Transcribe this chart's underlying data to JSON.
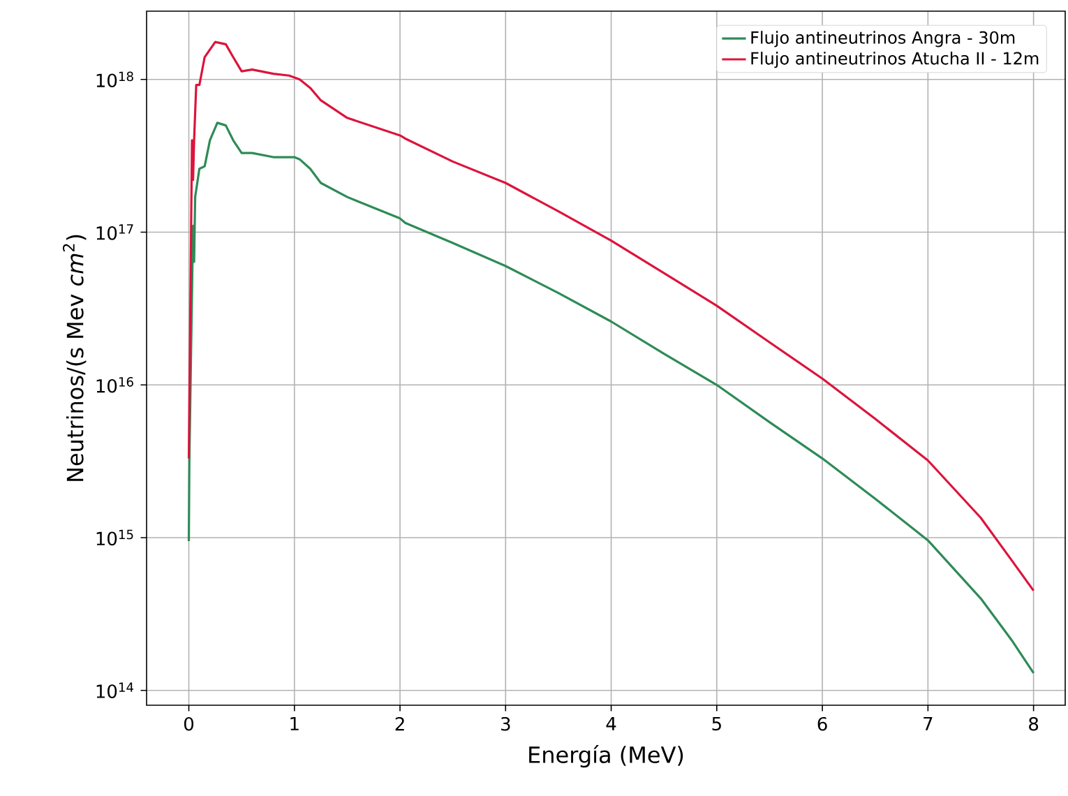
{
  "chart_data": {
    "type": "line",
    "xlabel": "Energía (MeV)",
    "ylabel": "Neutrinos/(s Mev *cm*$^{2}$)",
    "log": "y",
    "grid": true,
    "legend": "top right",
    "marker": "none",
    "line_style": "solid",
    "xlim": [
      -0.4,
      8.3
    ],
    "ylim": [
      80000000000000.0,
      2.8e+18
    ],
    "xticks": [
      0,
      1,
      2,
      3,
      4,
      5,
      6,
      7,
      8
    ],
    "yticks": [
      {
        "value": 100000000000000.0,
        "label": "10$^{14}$"
      },
      {
        "value": 1000000000000000.0,
        "label": "10$^{15}$"
      },
      {
        "value": 1e+16,
        "label": "10$^{16}$"
      },
      {
        "value": 1e+17,
        "label": "10$^{17}$"
      },
      {
        "value": 1e+18,
        "label": "10$^{18}$"
      }
    ],
    "series": [
      {
        "name": "Flujo antineutrinos Angra - 30m",
        "color": "#2e8b57",
        "x": [
          0,
          0.005,
          0.04,
          0.05,
          0.06,
          0.1,
          0.15,
          0.2,
          0.27,
          0.35,
          0.42,
          0.5,
          0.6,
          0.8,
          1.0,
          1.05,
          1.15,
          1.25,
          1.5,
          2.0,
          2.05,
          2.5,
          3,
          3.5,
          4,
          4.5,
          5,
          5.5,
          6,
          6.5,
          7,
          7.5,
          7.8,
          8
        ],
        "values": [
          950000000000000.0,
          3200000000000000.0,
          1.1e+17,
          6.4e+16,
          1.7e+17,
          2.6e+17,
          2.7e+17,
          4e+17,
          5.2e+17,
          5e+17,
          4e+17,
          3.3e+17,
          3.3e+17,
          3.1e+17,
          3.1e+17,
          3e+17,
          2.6e+17,
          2.1e+17,
          1.7e+17,
          1.23e+17,
          1.15e+17,
          8.5e+16,
          6e+16,
          4e+16,
          2.6e+16,
          1.6e+16,
          1e+16,
          5700000000000000.0,
          3300000000000000.0,
          1800000000000000.0,
          960000000000000.0,
          400000000000000.0,
          210000000000000.0,
          130000000000000.0
        ]
      },
      {
        "name": "Flujo antineutrinos Atucha II - 12m",
        "color": "#dc143c",
        "x": [
          0,
          0.03,
          0.04,
          0.05,
          0.07,
          0.1,
          0.15,
          0.25,
          0.35,
          0.42,
          0.5,
          0.6,
          0.8,
          0.95,
          1.05,
          1.15,
          1.25,
          1.5,
          2.0,
          2.05,
          2.5,
          3,
          3.5,
          4,
          4.5,
          5,
          5.5,
          6,
          6.5,
          7,
          7.5,
          7.8,
          8
        ],
        "values": [
          3300000000000000.0,
          4e+17,
          2.2e+17,
          4e+17,
          9.2e+17,
          9.2e+17,
          1.4e+18,
          1.76e+18,
          1.7e+18,
          1.4e+18,
          1.13e+18,
          1.16e+18,
          1.09e+18,
          1.06e+18,
          1e+18,
          8.8e+17,
          7.3e+17,
          5.6e+17,
          4.3e+17,
          4.1e+17,
          2.9e+17,
          2.1e+17,
          1.37e+17,
          8.8e+16,
          5.4e+16,
          3.3e+16,
          1.9e+16,
          1.1e+16,
          6000000000000000.0,
          3200000000000000.0,
          1350000000000000.0,
          700000000000000.0,
          450000000000000.0
        ]
      }
    ]
  }
}
